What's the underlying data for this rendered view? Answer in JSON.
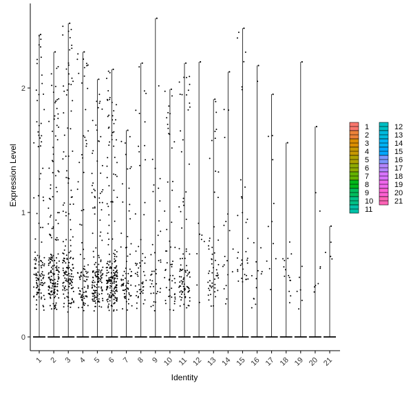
{
  "chart_data": {
    "type": "scatter",
    "subtype": "violin-jitter",
    "title": "",
    "xlabel": "Identity",
    "ylabel": "Expression Level",
    "ylim": [
      -0.12,
      2.67
    ],
    "yticks": [
      0,
      1,
      2
    ],
    "categories": [
      "1",
      "2",
      "3",
      "4",
      "5",
      "6",
      "7",
      "8",
      "9",
      "10",
      "11",
      "12",
      "13",
      "14",
      "15",
      "16",
      "17",
      "18",
      "19",
      "20",
      "21"
    ],
    "category_max": [
      2.43,
      2.29,
      2.52,
      2.29,
      2.07,
      2.15,
      1.66,
      2.2,
      2.56,
      1.99,
      2.2,
      2.21,
      1.91,
      2.13,
      2.48,
      2.18,
      1.95,
      1.56,
      2.21,
      1.69,
      0.89
    ],
    "category_point_counts": [
      120,
      170,
      160,
      90,
      150,
      200,
      70,
      55,
      40,
      55,
      90,
      8,
      55,
      18,
      35,
      14,
      11,
      15,
      6,
      8,
      4
    ],
    "category_density_center": [
      0.45,
      0.55,
      0.55,
      0.35,
      0.3,
      0.4,
      0.35,
      0.6,
      0.6,
      0.45,
      0.5,
      0.9,
      0.6,
      1.0,
      1.1,
      0.9,
      0.8,
      0.7,
      0.5,
      0.9,
      0.6
    ],
    "jitter_note": "",
    "zero_baseline": 0,
    "legend": {
      "position": "right",
      "entries": [
        {
          "label": "1",
          "color": "#F8766D"
        },
        {
          "label": "2",
          "color": "#EC8239"
        },
        {
          "label": "3",
          "color": "#DB8E00"
        },
        {
          "label": "4",
          "color": "#C79800"
        },
        {
          "label": "5",
          "color": "#AEA200"
        },
        {
          "label": "6",
          "color": "#8FAA00"
        },
        {
          "label": "7",
          "color": "#64B200"
        },
        {
          "label": "8",
          "color": "#00B81B"
        },
        {
          "label": "9",
          "color": "#00BD5C"
        },
        {
          "label": "10",
          "color": "#00C085"
        },
        {
          "label": "11",
          "color": "#00C1A7"
        },
        {
          "label": "12",
          "color": "#00BFC4"
        },
        {
          "label": "13",
          "color": "#00BADE"
        },
        {
          "label": "14",
          "color": "#00B2F3"
        },
        {
          "label": "15",
          "color": "#00A6FF"
        },
        {
          "label": "16",
          "color": "#7C96FF"
        },
        {
          "label": "17",
          "color": "#B385FF"
        },
        {
          "label": "18",
          "color": "#D874FD"
        },
        {
          "label": "19",
          "color": "#EF67EB"
        },
        {
          "label": "20",
          "color": "#FD61D3"
        },
        {
          "label": "21",
          "color": "#FF63B6"
        }
      ]
    },
    "point_color": "#000000",
    "axis_color": "#000000",
    "grid": false
  }
}
